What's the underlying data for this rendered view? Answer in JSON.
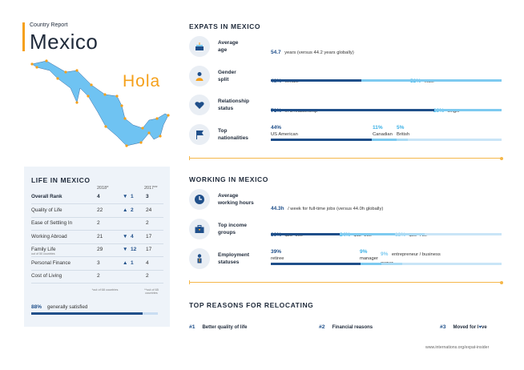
{
  "header": {
    "country_label": "Country Report",
    "country_title": "Mexico",
    "greeting": "Hola"
  },
  "colors": {
    "accent": "#f5a01a",
    "dark_blue": "#1f4f8a",
    "light_blue": "#7dcaf0",
    "map_fill": "#6fc3f2"
  },
  "life": {
    "title": "LIFE IN MEXICO",
    "col_2018": "2018*",
    "col_2017": "2017**",
    "rows": [
      {
        "label": "Overall Rank",
        "sub": "",
        "v2018": "4",
        "arrow": "▼",
        "delta": "1",
        "v2017": "3"
      },
      {
        "label": "Quality of Life",
        "sub": "",
        "v2018": "22",
        "arrow": "▲",
        "delta": "2",
        "v2017": "24"
      },
      {
        "label": "Ease of Settling In",
        "sub": "",
        "v2018": "2",
        "arrow": "",
        "delta": "",
        "v2017": "2"
      },
      {
        "label": "Working Abroad",
        "sub": "",
        "v2018": "21",
        "arrow": "▼",
        "delta": "4",
        "v2017": "17"
      },
      {
        "label": "Family Life",
        "sub": "out of 50 countries",
        "v2018": "29",
        "arrow": "▼",
        "delta": "12",
        "v2017": "17"
      },
      {
        "label": "Personal Finance",
        "sub": "",
        "v2018": "3",
        "arrow": "▲",
        "delta": "1",
        "v2017": "4"
      },
      {
        "label": "Cost of Living",
        "sub": "",
        "v2018": "2",
        "arrow": "",
        "delta": "",
        "v2017": "2"
      }
    ],
    "note_2018": "*out of 68 countries",
    "note_2017": "**out of 65 countries",
    "satisfied_pct": "88%",
    "satisfied_text": "generally satisfied",
    "satisfied_value": 0.88
  },
  "expats": {
    "title": "EXPATS IN MEXICO",
    "age": {
      "label_1": "Average",
      "label_2": "age",
      "value": "54.7",
      "text": "years (versus 44.2 years globally)"
    },
    "gender": {
      "label_1": "Gender",
      "label_2": "split",
      "female_pct": "48%",
      "female_text": "female",
      "male_pct": "52%",
      "male_text": "male",
      "female_value": 0.48
    },
    "relationship": {
      "label_1": "Relationship",
      "label_2": "status",
      "in_pct": "71%",
      "in_text": "in a relationship",
      "single_pct": "29%",
      "single_text": "single",
      "in_value": 0.71
    },
    "nationalities": {
      "label_1": "Top",
      "label_2": "nationalities",
      "n1_pct": "44%",
      "n1_text": "US American",
      "n2_pct": "11%",
      "n2_text": "Canadian",
      "n3_pct": "5%",
      "n3_text": "British",
      "values": [
        0.44,
        0.11,
        0.05
      ]
    }
  },
  "working": {
    "title": "WORKING IN MEXICO",
    "hours": {
      "label_1": "Average",
      "label_2": "working hours",
      "value": "44.3h",
      "text": "/ week for full-time jobs (versus 44.0h globally)"
    },
    "income": {
      "label_1": "Top income",
      "label_2": "groups",
      "g1_pct": "30%",
      "g1_text": "$25–50k",
      "g2_pct": "24%",
      "g2_text": "$12–25k",
      "g3_pct": "13%",
      "g3_text": "$50–75k",
      "values": [
        0.3,
        0.24,
        0.13
      ]
    },
    "employment": {
      "label_1": "Employment",
      "label_2": "statuses",
      "s1_pct": "39%",
      "s1_text": "retiree",
      "s2_pct": "9%",
      "s2_text": "manager",
      "s3_pct": "9%",
      "s3_text": "entrepreneur / business owner",
      "values": [
        0.39,
        0.09,
        0.09
      ]
    }
  },
  "reasons": {
    "title": "TOP REASONS FOR RELOCATING",
    "r1_num": "#1",
    "r1_text": "Better quality of life",
    "r2_num": "#2",
    "r2_text": "Financial reasons",
    "r3_num": "#3",
    "r3_text_a": "Moved for l",
    "r3_heart": "♥",
    "r3_text_b": "ve"
  },
  "footer": {
    "url": "www.internations.org/expat-insider"
  },
  "icons": [
    "cake-icon",
    "person-icon",
    "heart-icon",
    "flag-icon",
    "clock-icon",
    "briefcase-icon",
    "worker-icon"
  ]
}
